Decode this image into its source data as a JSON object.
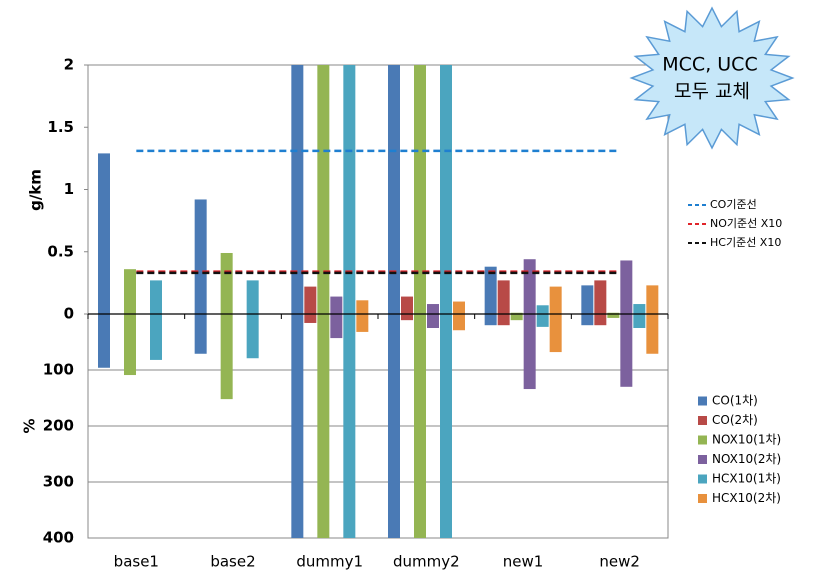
{
  "chart_data": {
    "type": "bar",
    "categories": [
      "base1",
      "base2",
      "dummy1",
      "dummy2",
      "new1",
      "new2"
    ],
    "y_label": "g/km",
    "ylim": [
      0,
      2
    ],
    "yticks": [
      0,
      0.5,
      1,
      1.5,
      2
    ],
    "y2_label": "%",
    "y2lim": [
      0,
      400
    ],
    "y2ticks": [
      100,
      200,
      300,
      400
    ],
    "series": [
      {
        "name": "CO(1차)",
        "color": "#4a7ab5",
        "values": [
          1.29,
          0.92,
          2,
          2,
          0.38,
          0.23
        ],
        "values_pct": [
          96,
          71,
          400,
          400,
          20,
          20
        ]
      },
      {
        "name": "CO(2차)",
        "color": "#b84a47",
        "values": [
          null,
          null,
          0.22,
          0.14,
          0.27,
          0.27
        ],
        "values_pct": [
          null,
          null,
          16,
          11,
          20,
          20
        ]
      },
      {
        "name": "NOX10(1차)",
        "color": "#94b553",
        "values": [
          0.36,
          0.49,
          2,
          2,
          0.01,
          0.01
        ],
        "values_pct": [
          109,
          152,
          400,
          400,
          11,
          7
        ]
      },
      {
        "name": "NOX10(2차)",
        "color": "#7c619e",
        "values": [
          null,
          null,
          0.14,
          0.08,
          0.44,
          0.43
        ],
        "values_pct": [
          null,
          null,
          43,
          25,
          134,
          130
        ]
      },
      {
        "name": "HCX10(1차)",
        "color": "#4ba5bf",
        "values": [
          0.27,
          0.27,
          2,
          2,
          0.07,
          0.08
        ],
        "values_pct": [
          82,
          79,
          400,
          400,
          23,
          25
        ]
      },
      {
        "name": "HCX10(2차)",
        "color": "#e8913d",
        "values": [
          null,
          null,
          0.11,
          0.1,
          0.22,
          0.23
        ],
        "values_pct": [
          null,
          null,
          32,
          29,
          68,
          71
        ]
      }
    ],
    "reference_lines": [
      {
        "name": "CO기준선",
        "color": "#1f7fd0",
        "value": 1.31
      },
      {
        "name": "NO기준선  X10",
        "color": "#e0242a",
        "value": 0.34
      },
      {
        "name": "HC기준선  X10",
        "color": "#111111",
        "value": 0.33
      }
    ],
    "annotation": {
      "line1": "MCC, UCC",
      "line2": "모두 교체"
    }
  }
}
